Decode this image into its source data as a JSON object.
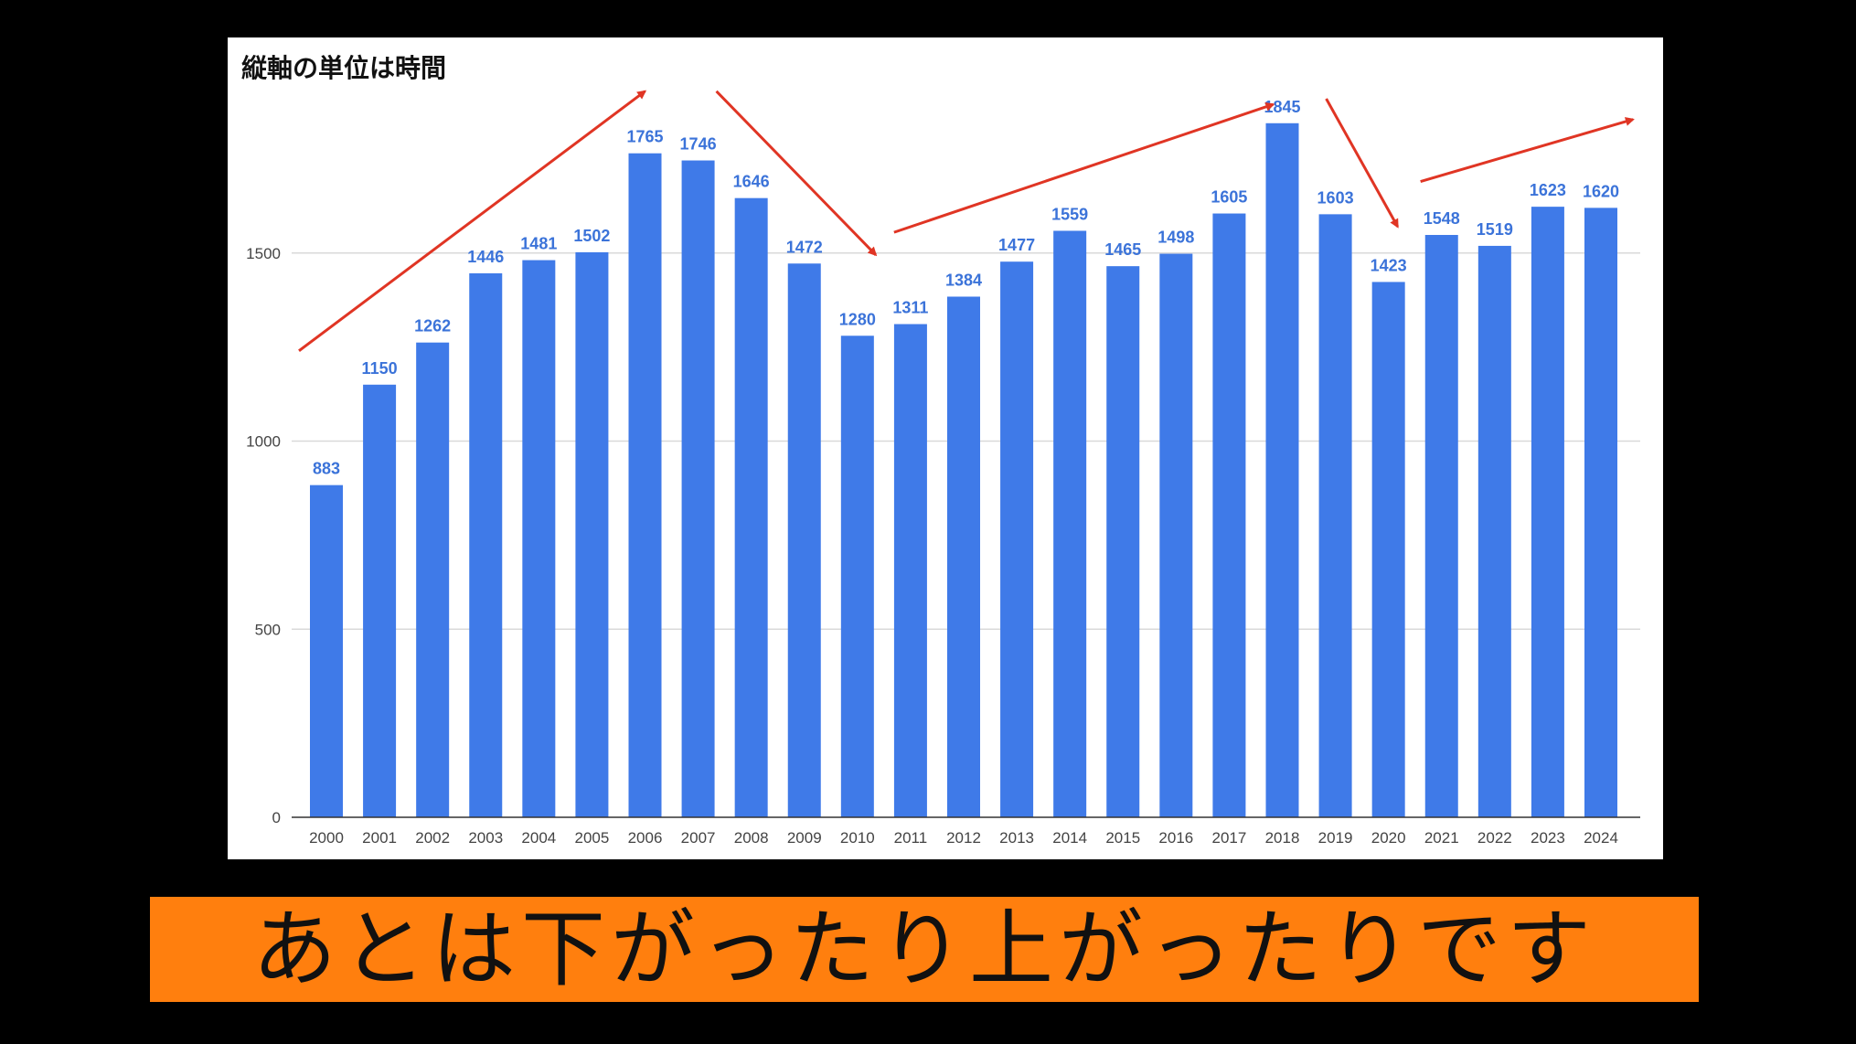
{
  "caption": "あとは下がったり上がったりです",
  "colors": {
    "bar": "#3f7ae8",
    "value_label": "#3b73d9",
    "arrow": "#e03524",
    "caption_background": "#ff7f0e",
    "gridline": "#d9d9d9"
  },
  "chart_data": {
    "type": "bar",
    "title": "縦軸の単位は時間",
    "xlabel": "",
    "ylabel": "",
    "categories": [
      "2000",
      "2001",
      "2002",
      "2003",
      "2004",
      "2005",
      "2006",
      "2007",
      "2008",
      "2009",
      "2010",
      "2011",
      "2012",
      "2013",
      "2014",
      "2015",
      "2016",
      "2017",
      "2018",
      "2019",
      "2020",
      "2021",
      "2022",
      "2023",
      "2024"
    ],
    "values": [
      883,
      1150,
      1262,
      1446,
      1481,
      1502,
      1765,
      1746,
      1646,
      1472,
      1280,
      1311,
      1384,
      1477,
      1559,
      1465,
      1498,
      1605,
      1845,
      1603,
      1423,
      1548,
      1519,
      1623,
      1620
    ],
    "ylim": [
      0,
      2000
    ],
    "yticks": [
      0,
      500,
      1000,
      1500
    ],
    "grid": true,
    "legend": "none",
    "data_labels": true,
    "annotations": [
      {
        "type": "arrow",
        "direction": "up",
        "from_category": "2000",
        "to_category": "2006",
        "from_value": 1240,
        "to_value": 1930
      },
      {
        "type": "arrow",
        "direction": "down",
        "from_category": "2007",
        "to_category": "2010",
        "from_value": 1930,
        "to_value": 1495
      },
      {
        "type": "arrow",
        "direction": "up",
        "from_category": "2010",
        "to_category": "2018",
        "from_value": 1555,
        "to_value": 1895
      },
      {
        "type": "arrow",
        "direction": "down",
        "from_category": "2019",
        "to_category": "2020",
        "from_value": 1910,
        "to_value": 1570
      },
      {
        "type": "arrow",
        "direction": "up",
        "from_category": "2020",
        "to_category": "2024",
        "from_value": 1690,
        "to_value": 1855
      }
    ]
  }
}
